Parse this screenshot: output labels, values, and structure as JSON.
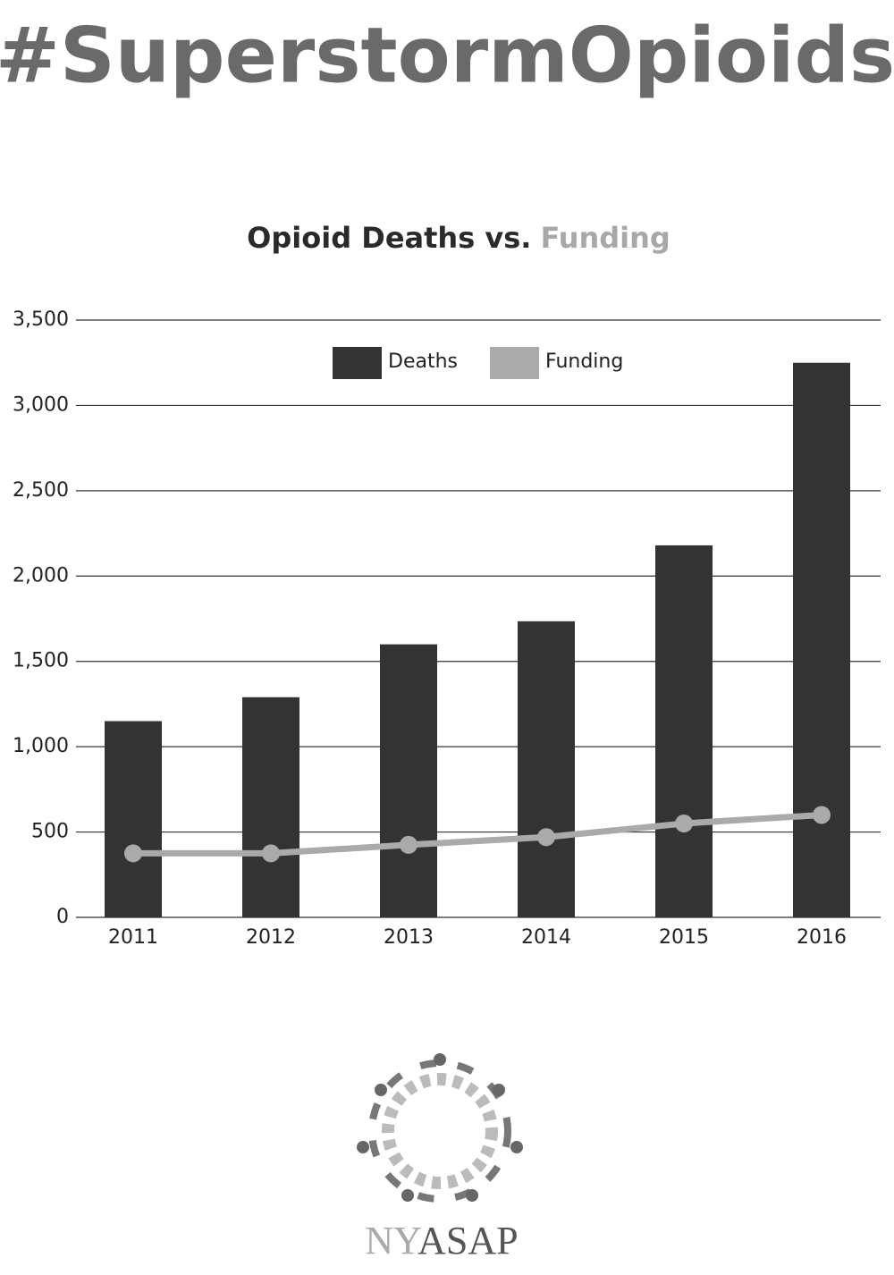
{
  "header": {
    "title": "#SuperstormOpioids"
  },
  "chart_data": {
    "type": "combo",
    "title": [
      "Opioid Deaths vs.",
      "Funding"
    ],
    "categories": [
      "2011",
      "2012",
      "2013",
      "2014",
      "2015",
      "2016"
    ],
    "series": [
      {
        "name": "Deaths",
        "type": "bar",
        "color": "#333333",
        "values": [
          1150,
          1290,
          1600,
          1735,
          2180,
          3250
        ]
      },
      {
        "name": "Funding",
        "type": "line",
        "color": "#aaaaaa",
        "values": [
          375,
          375,
          425,
          470,
          550,
          600
        ]
      }
    ],
    "ylim": [
      0,
      3500
    ],
    "yticks": [
      0,
      500,
      {
        "value": 1000,
        "label": "1,000"
      },
      {
        "value": 1500,
        "label": "1,500"
      },
      {
        "value": 2000,
        "label": "2,000"
      },
      {
        "value": 2500,
        "label": "2,500"
      },
      {
        "value": 3000,
        "label": "3,000"
      },
      {
        "value": 3500,
        "label": "3,500"
      }
    ],
    "grid": true,
    "legend": "top"
  },
  "logo": {
    "text": [
      "NY",
      "ASAP"
    ]
  }
}
